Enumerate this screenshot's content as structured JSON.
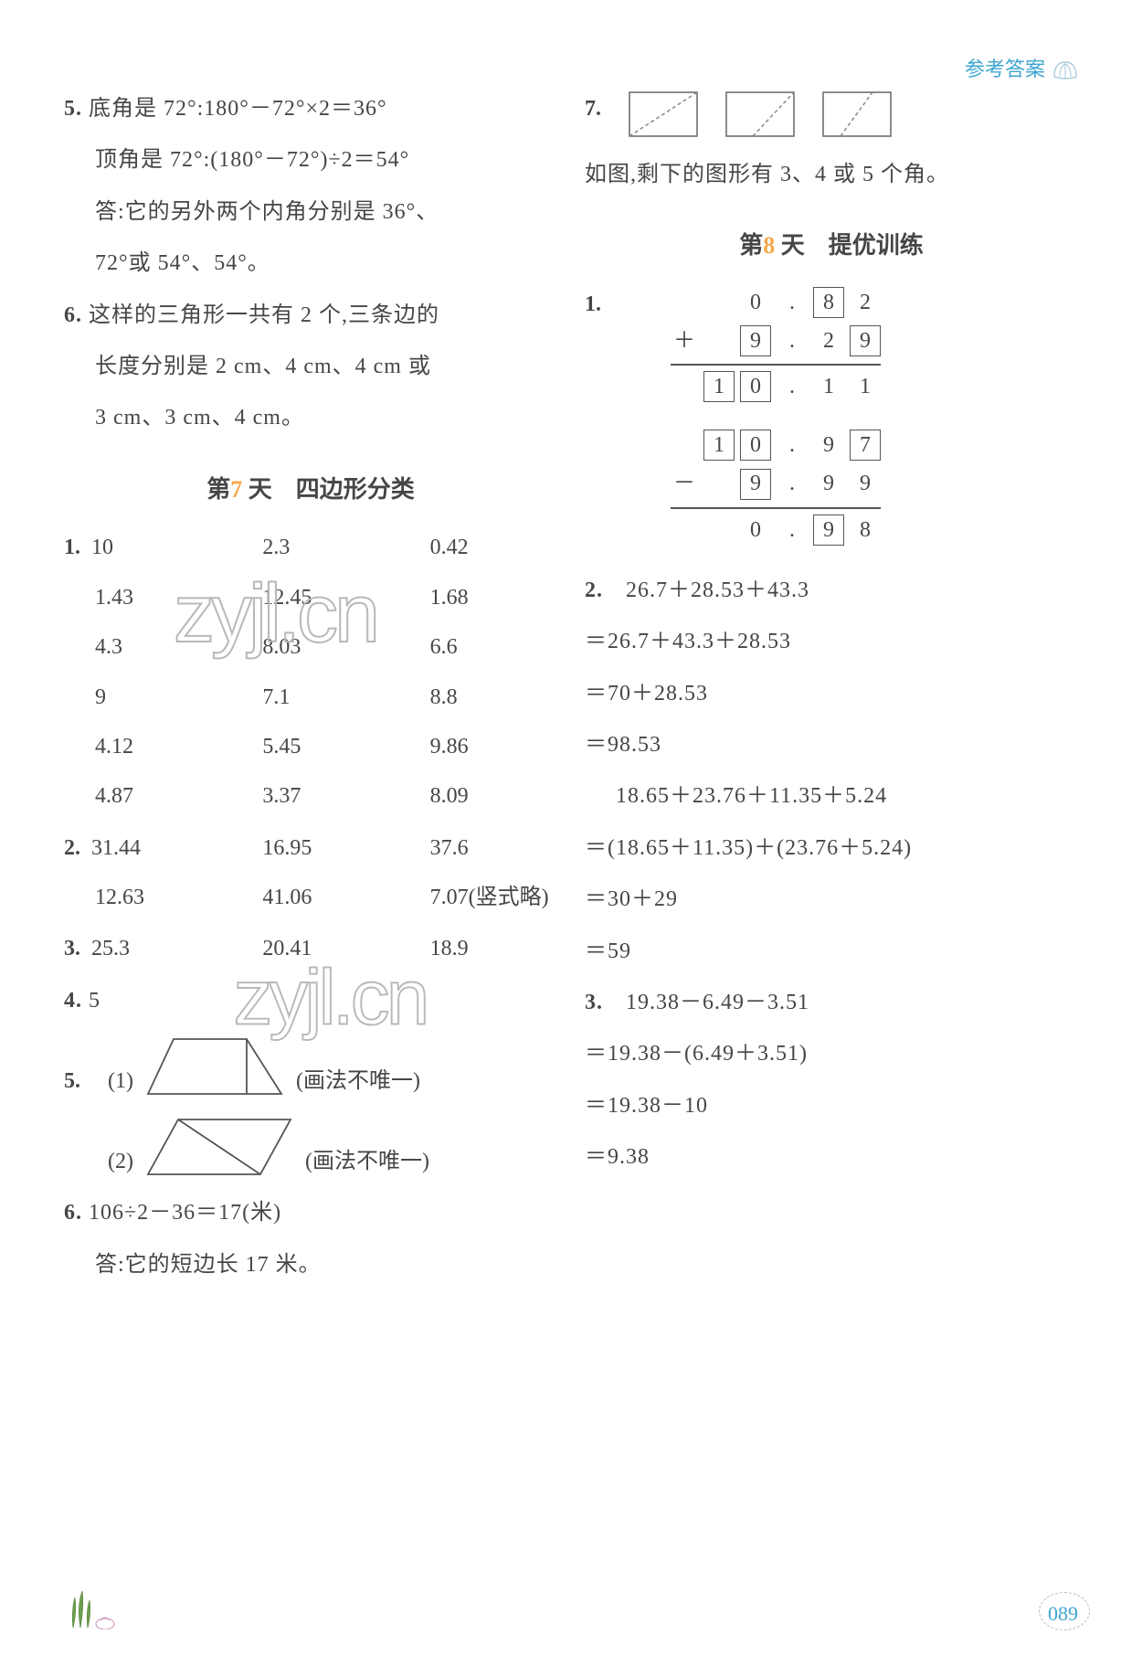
{
  "header": {
    "label": "参考答案"
  },
  "left": {
    "q5": {
      "line1": "底角是 72°:180°－72°×2＝36°",
      "line2": "顶角是 72°:(180°－72°)÷2＝54°",
      "line3": "答:它的另外两个内角分别是 36°、",
      "line4": "72°或 54°、54°。"
    },
    "q6": {
      "line1": "这样的三角形一共有 2 个,三条边的",
      "line2": "长度分别是 2 cm、4 cm、4 cm 或",
      "line3": "3 cm、3 cm、4 cm。"
    },
    "section_title_pre": "第",
    "section_day": "7",
    "section_title_post": " 天　四边形分类",
    "grid1_label": "1.",
    "grid1": [
      "10",
      "2.3",
      "0.42",
      "1.43",
      "12.45",
      "1.68",
      "4.3",
      "8.03",
      "6.6",
      "9",
      "7.1",
      "8.8",
      "4.12",
      "5.45",
      "9.86",
      "4.87",
      "3.37",
      "8.09"
    ],
    "grid2_label": "2.",
    "grid2": [
      "31.44",
      "16.95",
      "37.6",
      "12.63",
      "41.06",
      "7.07(竖式略)"
    ],
    "grid3_label": "3.",
    "grid3": [
      "25.3",
      "20.41",
      "18.9"
    ],
    "q4": {
      "label": "4.",
      "val": "5"
    },
    "q5b": {
      "label": "5.",
      "note1": "(1)",
      "caption1": "(画法不唯一)",
      "note2": "(2)",
      "caption2": "(画法不唯一)"
    },
    "q6b": {
      "label": "6.",
      "line1": "106÷2－36＝17(米)",
      "line2": "答:它的短边长 17 米。"
    }
  },
  "right": {
    "q7": {
      "label": "7.",
      "caption": "如图,剩下的图形有 3、4 或 5 个角。"
    },
    "section_title_pre": "第",
    "section_day": "8",
    "section_title_post": " 天　提优训练",
    "q1": {
      "label": "1."
    },
    "arith1": {
      "row1": [
        "",
        "0",
        ".",
        "8",
        "2"
      ],
      "row1_boxed": [
        false,
        false,
        false,
        true,
        false
      ],
      "sign": "＋",
      "row2": [
        "",
        "9",
        ".",
        "2",
        "9"
      ],
      "row2_boxed": [
        false,
        true,
        false,
        false,
        true
      ],
      "res": [
        "1",
        "0",
        ".",
        "1",
        "1"
      ],
      "res_boxed": [
        true,
        true,
        false,
        false,
        false
      ]
    },
    "arith2": {
      "row1": [
        "1",
        "0",
        ".",
        "9",
        "7"
      ],
      "row1_boxed": [
        true,
        true,
        false,
        false,
        true
      ],
      "sign": "－",
      "row2": [
        "",
        "9",
        ".",
        "9",
        "9"
      ],
      "row2_boxed": [
        false,
        true,
        false,
        false,
        false
      ],
      "res": [
        "",
        "0",
        ".",
        "9",
        "8"
      ],
      "res_boxed": [
        false,
        false,
        false,
        true,
        false
      ]
    },
    "q2": {
      "label": "2.",
      "l1": "26.7＋28.53＋43.3",
      "l2": "＝26.7＋43.3＋28.53",
      "l3": "＝70＋28.53",
      "l4": "＝98.53",
      "l5": "18.65＋23.76＋11.35＋5.24",
      "l6": "＝(18.65＋11.35)＋(23.76＋5.24)",
      "l7": "＝30＋29",
      "l8": "＝59"
    },
    "q3": {
      "label": "3.",
      "l1": "19.38－6.49－3.51",
      "l2": "＝19.38－(6.49＋3.51)",
      "l3": "＝19.38－10",
      "l4": "＝9.38"
    }
  },
  "footer": {
    "page": "089"
  },
  "watermark": {
    "text": "zyjl.cn"
  },
  "colors": {
    "text": "#464646",
    "accent_orange": "#f7a74c",
    "accent_teal": "#3fa6d0",
    "border": "#555555",
    "dashed": "#888888",
    "bg": "#ffffff"
  }
}
